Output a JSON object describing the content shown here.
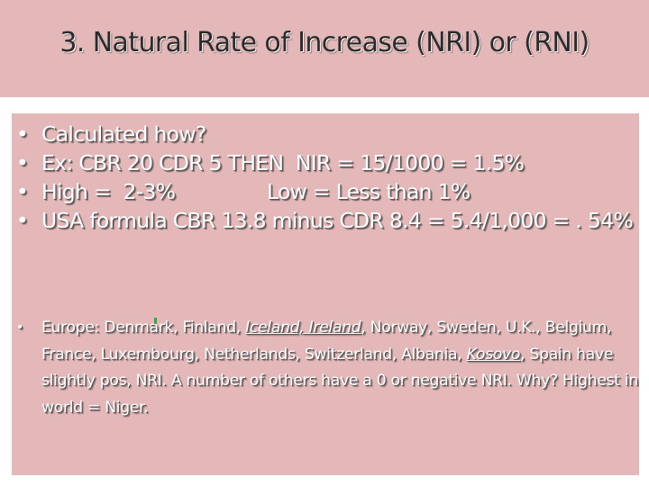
{
  "slide": {
    "title": "3. Natural Rate of Increase (NRI) or (RNI)",
    "bullet_symbol": "•",
    "colors": {
      "panel_background": "#e4b8b8",
      "body_text": "#ffffff",
      "title_text": "#2b2b2b"
    },
    "bullets": [
      "Calculated how?",
      "Ex: CBR 20 CDR 5 THEN  NIR = 15/1000 = 1.5%",
      "High =  2-3%               Low = Less than 1%",
      "USA formula CBR 13.8 minus CDR 8.4 = 5.4/1,000 = . 54%"
    ],
    "europe": {
      "part1": "Europe: Denmark, Finland, ",
      "iceland_ireland": "Iceland, Ireland",
      "part2": ", Norway, Sweden, U.K., Belgium, France, Luxembourg, Netherlands, Switzerland, Albania, ",
      "kosovo": "Kosovo",
      "part3": ", Spain have slightly pos, NRI. A number of others have a 0 or negative NRI. Why? Highest in world = Niger."
    }
  }
}
